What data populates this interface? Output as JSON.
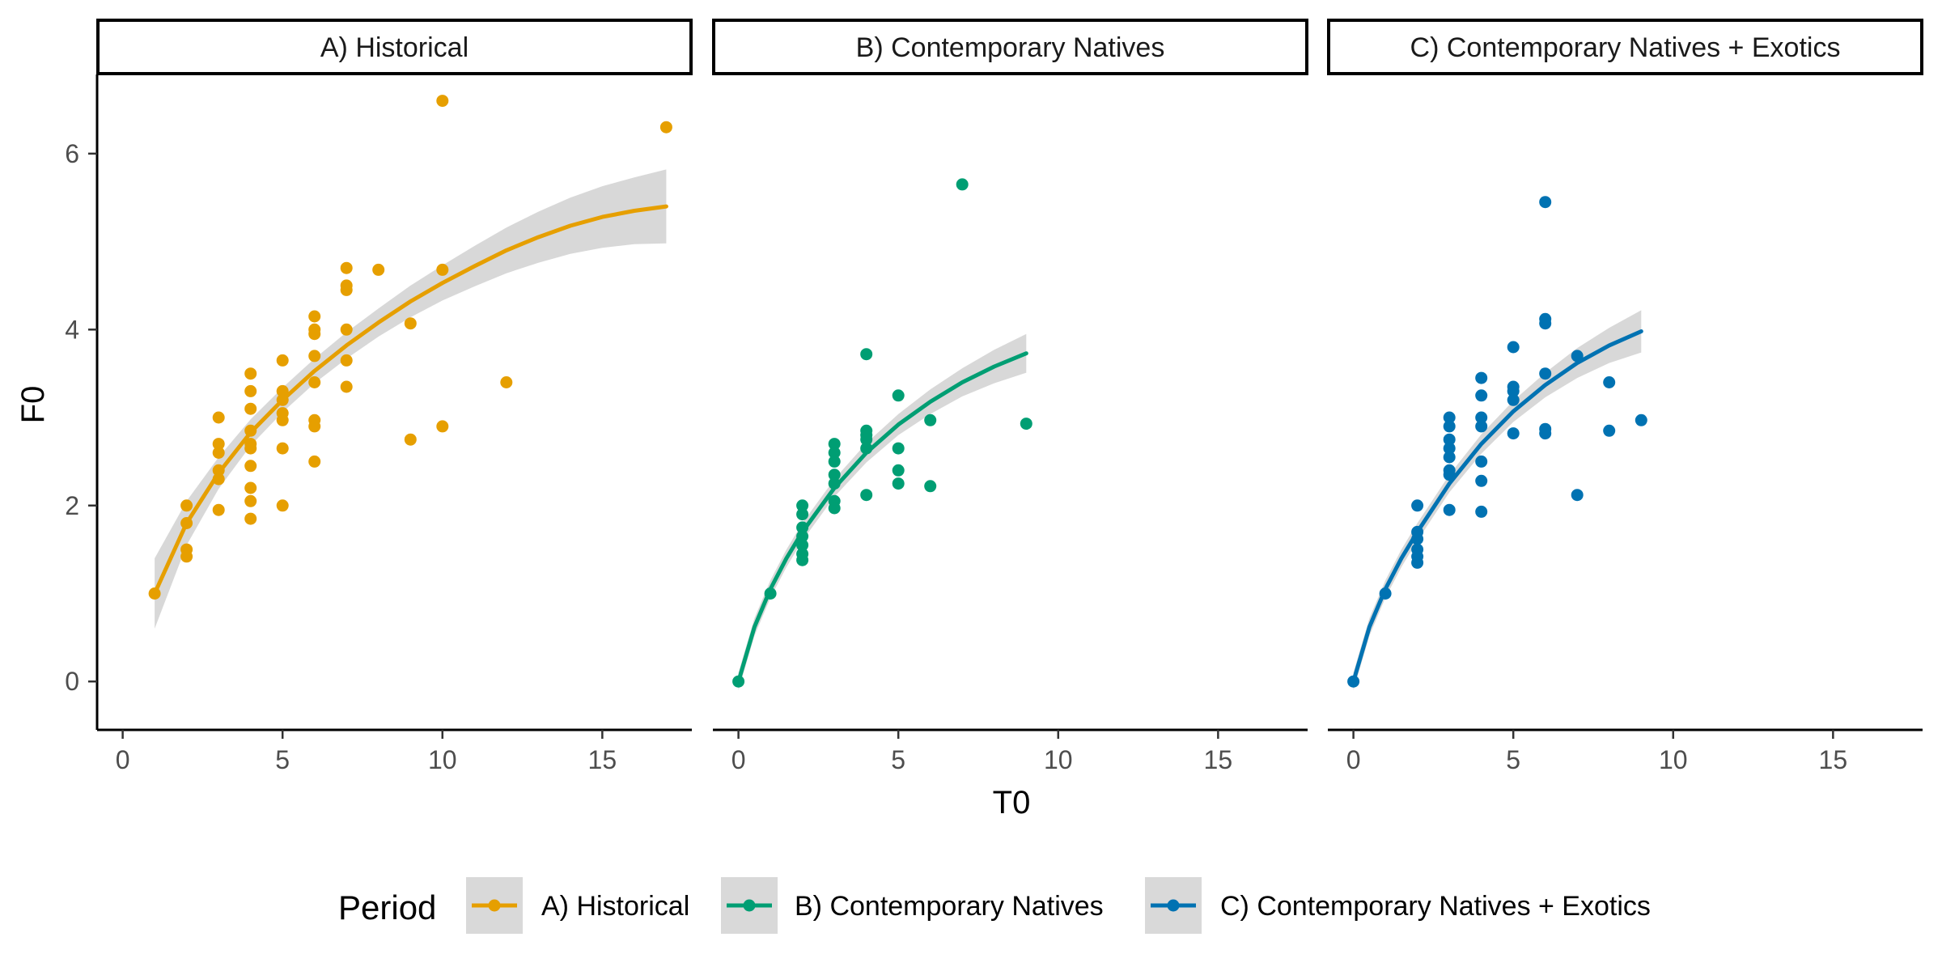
{
  "chart_data": {
    "type": "scatter",
    "layout": "faceted",
    "x_label": "T0",
    "y_label": "F0",
    "xlim": [
      -0.8,
      17.8
    ],
    "ylim": [
      -0.55,
      6.9
    ],
    "x_ticks": [
      0,
      5,
      10,
      15
    ],
    "y_ticks": [
      0,
      2,
      4,
      6
    ],
    "grid": false,
    "legend": {
      "title": "Period",
      "position": "bottom"
    },
    "panels": [
      {
        "title": "A) Historical",
        "series_name": "A) Historical",
        "color": "#E69F00",
        "points": [
          [
            1,
            1.0
          ],
          [
            2,
            2.0
          ],
          [
            2,
            1.8
          ],
          [
            2,
            1.5
          ],
          [
            2,
            1.42
          ],
          [
            3,
            3.0
          ],
          [
            3,
            2.7
          ],
          [
            3,
            2.6
          ],
          [
            3,
            2.4
          ],
          [
            3,
            2.3
          ],
          [
            3,
            1.95
          ],
          [
            4,
            3.5
          ],
          [
            4,
            3.3
          ],
          [
            4,
            3.1
          ],
          [
            4,
            2.85
          ],
          [
            4,
            2.7
          ],
          [
            4,
            2.65
          ],
          [
            4,
            2.45
          ],
          [
            4,
            2.2
          ],
          [
            4,
            2.05
          ],
          [
            4,
            1.85
          ],
          [
            5,
            3.65
          ],
          [
            5,
            3.3
          ],
          [
            5,
            3.2
          ],
          [
            5,
            3.05
          ],
          [
            5,
            2.97
          ],
          [
            5,
            2.65
          ],
          [
            5,
            2.0
          ],
          [
            6,
            4.15
          ],
          [
            6,
            4.0
          ],
          [
            6,
            3.95
          ],
          [
            6,
            3.7
          ],
          [
            6,
            3.4
          ],
          [
            6,
            2.97
          ],
          [
            6,
            2.9
          ],
          [
            6,
            2.5
          ],
          [
            7,
            4.7
          ],
          [
            7,
            4.5
          ],
          [
            7,
            4.45
          ],
          [
            7,
            4.0
          ],
          [
            7,
            3.65
          ],
          [
            7,
            3.35
          ],
          [
            8,
            4.68
          ],
          [
            9,
            4.07
          ],
          [
            9,
            2.75
          ],
          [
            10,
            6.6
          ],
          [
            10,
            4.68
          ],
          [
            10,
            2.9
          ],
          [
            12,
            3.4
          ],
          [
            17,
            6.3
          ]
        ],
        "fit": {
          "x": [
            1.0,
            2.0,
            3.0,
            4.0,
            5.0,
            6.0,
            7.0,
            8.0,
            9.0,
            10.0,
            11.0,
            12.0,
            13.0,
            14.0,
            15.0,
            16.0,
            17.0
          ],
          "y": [
            1.0,
            1.8,
            2.37,
            2.83,
            3.2,
            3.53,
            3.82,
            4.08,
            4.32,
            4.53,
            4.72,
            4.9,
            5.05,
            5.18,
            5.28,
            5.35,
            5.4
          ]
        },
        "ci_half_width": [
          0.4,
          0.25,
          0.18,
          0.15,
          0.14,
          0.14,
          0.15,
          0.16,
          0.18,
          0.2,
          0.23,
          0.26,
          0.29,
          0.32,
          0.35,
          0.38,
          0.42
        ]
      },
      {
        "title": "B) Contemporary Natives",
        "series_name": "B) Contemporary Natives",
        "color": "#009E73",
        "points": [
          [
            0,
            0.0
          ],
          [
            1,
            1.0
          ],
          [
            2,
            2.0
          ],
          [
            2,
            1.9
          ],
          [
            2,
            1.75
          ],
          [
            2,
            1.65
          ],
          [
            2,
            1.55
          ],
          [
            2,
            1.45
          ],
          [
            2,
            1.38
          ],
          [
            3,
            2.7
          ],
          [
            3,
            2.6
          ],
          [
            3,
            2.5
          ],
          [
            3,
            2.35
          ],
          [
            3,
            2.25
          ],
          [
            3,
            2.05
          ],
          [
            3,
            1.97
          ],
          [
            4,
            3.72
          ],
          [
            4,
            2.85
          ],
          [
            4,
            2.8
          ],
          [
            4,
            2.75
          ],
          [
            4,
            2.65
          ],
          [
            4,
            2.12
          ],
          [
            5,
            3.25
          ],
          [
            5,
            2.65
          ],
          [
            5,
            2.4
          ],
          [
            5,
            2.25
          ],
          [
            6,
            2.97
          ],
          [
            6,
            2.22
          ],
          [
            7,
            5.65
          ],
          [
            9,
            2.93
          ]
        ],
        "fit": {
          "x": [
            0.0,
            0.5,
            1.0,
            1.5,
            2.0,
            3.0,
            4.0,
            5.0,
            6.0,
            7.0,
            8.0,
            9.0
          ],
          "y": [
            0.0,
            0.62,
            1.05,
            1.4,
            1.7,
            2.2,
            2.6,
            2.92,
            3.18,
            3.4,
            3.58,
            3.73
          ]
        },
        "ci_half_width": [
          0.1,
          0.1,
          0.1,
          0.1,
          0.1,
          0.1,
          0.11,
          0.12,
          0.14,
          0.16,
          0.19,
          0.22
        ]
      },
      {
        "title": "C) Contemporary Natives + Exotics",
        "series_name": "C) Contemporary Natives + Exotics",
        "color": "#0072B2",
        "points": [
          [
            0,
            0.0
          ],
          [
            1,
            1.0
          ],
          [
            2,
            2.0
          ],
          [
            2,
            1.7
          ],
          [
            2,
            1.62
          ],
          [
            2,
            1.5
          ],
          [
            2,
            1.42
          ],
          [
            2,
            1.35
          ],
          [
            3,
            3.0
          ],
          [
            3,
            2.9
          ],
          [
            3,
            2.75
          ],
          [
            3,
            2.65
          ],
          [
            3,
            2.55
          ],
          [
            3,
            2.4
          ],
          [
            3,
            2.35
          ],
          [
            3,
            1.95
          ],
          [
            4,
            3.45
          ],
          [
            4,
            3.25
          ],
          [
            4,
            3.0
          ],
          [
            4,
            2.9
          ],
          [
            4,
            2.5
          ],
          [
            4,
            2.28
          ],
          [
            4,
            1.93
          ],
          [
            5,
            3.8
          ],
          [
            5,
            3.35
          ],
          [
            5,
            3.3
          ],
          [
            5,
            3.2
          ],
          [
            5,
            2.82
          ],
          [
            6,
            5.45
          ],
          [
            6,
            4.12
          ],
          [
            6,
            4.07
          ],
          [
            6,
            3.5
          ],
          [
            6,
            2.87
          ],
          [
            6,
            2.82
          ],
          [
            7,
            3.7
          ],
          [
            7,
            2.12
          ],
          [
            8,
            3.4
          ],
          [
            8,
            2.85
          ],
          [
            9,
            2.97
          ]
        ],
        "fit": {
          "x": [
            0.0,
            0.5,
            1.0,
            1.5,
            2.0,
            3.0,
            4.0,
            5.0,
            6.0,
            7.0,
            8.0,
            9.0
          ],
          "y": [
            0.0,
            0.62,
            1.05,
            1.4,
            1.7,
            2.25,
            2.7,
            3.07,
            3.37,
            3.62,
            3.82,
            3.98
          ]
        },
        "ci_half_width": [
          0.1,
          0.1,
          0.1,
          0.1,
          0.1,
          0.1,
          0.11,
          0.12,
          0.14,
          0.17,
          0.2,
          0.24
        ]
      }
    ]
  }
}
